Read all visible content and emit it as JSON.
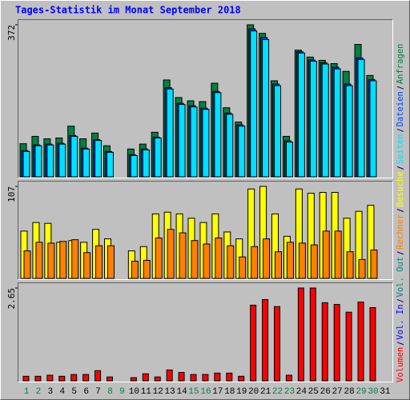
{
  "chart_data": [
    {
      "type": "bar",
      "title": "Tages-Statistik im Monat September 2018",
      "categories": [
        "1",
        "2",
        "3",
        "4",
        "5",
        "6",
        "7",
        "8",
        "9",
        "10",
        "11",
        "12",
        "13",
        "14",
        "15",
        "16",
        "17",
        "18",
        "19",
        "20",
        "21",
        "22",
        "23",
        "24",
        "25",
        "26",
        "27",
        "28",
        "29",
        "30",
        "31"
      ],
      "category_colors": [
        "#008040",
        "#008040",
        "#000000",
        "#000000",
        "#000000",
        "#000000",
        "#000000",
        "#008040",
        "#008040",
        "#000000",
        "#000000",
        "#000000",
        "#000000",
        "#000000",
        "#008040",
        "#008040",
        "#000000",
        "#000000",
        "#000000",
        "#000000",
        "#000000",
        "#008040",
        "#008040",
        "#000000",
        "#000000",
        "#000000",
        "#000000",
        "#000000",
        "#008040",
        "#008040",
        "#000000"
      ],
      "ylim": [
        0,
        372
      ],
      "yticks": [
        372
      ],
      "series": [
        {
          "name": "Anfragen",
          "color": "#008040",
          "values": [
            81,
            99,
            93,
            95,
            124,
            93,
            107,
            76,
            0,
            68,
            80,
            109,
            237,
            194,
            186,
            184,
            229,
            169,
            134,
            372,
            351,
            235,
            99,
            310,
            293,
            285,
            277,
            258,
            324,
            248,
            null
          ]
        },
        {
          "name": "Dateien",
          "color": "#0040ff",
          "values": [
            64,
            78,
            80,
            82,
            101,
            70,
            91,
            62,
            0,
            54,
            68,
            97,
            218,
            180,
            174,
            168,
            209,
            156,
            127,
            362,
            341,
            227,
            88,
            306,
            286,
            279,
            268,
            227,
            291,
            238,
            null
          ]
        },
        {
          "name": "Seiten",
          "color": "#00e0ff",
          "values": [
            62,
            76,
            78,
            80,
            99,
            68,
            89,
            60,
            0,
            52,
            66,
            95,
            215,
            177,
            171,
            165,
            206,
            153,
            124,
            357,
            336,
            223,
            85,
            303,
            283,
            276,
            264,
            223,
            287,
            235,
            null
          ]
        }
      ]
    },
    {
      "type": "bar",
      "ylim": [
        0,
        107
      ],
      "yticks": [
        107
      ],
      "series": [
        {
          "name": "Besuche",
          "color": "#ffff00",
          "values": [
            55,
            65,
            64,
            42,
            44,
            42,
            57,
            46,
            0,
            32,
            37,
            75,
            77,
            75,
            70,
            65,
            75,
            54,
            46,
            104,
            107,
            75,
            49,
            104,
            99,
            100,
            100,
            70,
            78,
            85,
            null
          ]
        },
        {
          "name": "Rechner",
          "color": "#ff8000",
          "values": [
            32,
            42,
            41,
            43,
            45,
            30,
            38,
            38,
            0,
            20,
            21,
            47,
            57,
            53,
            44,
            40,
            47,
            38,
            25,
            37,
            46,
            31,
            42,
            41,
            39,
            55,
            55,
            31,
            22,
            33,
            null
          ]
        }
      ]
    },
    {
      "type": "bar",
      "ylim": [
        0,
        2.65
      ],
      "yticks": [
        2.65
      ],
      "series": [
        {
          "name": "Volumen",
          "color": "#ff0000",
          "values": [
            0.13,
            0.13,
            0.16,
            0.13,
            0.18,
            0.18,
            0.29,
            0.11,
            0,
            0.09,
            0.2,
            0.11,
            0.31,
            0.24,
            0.18,
            0.18,
            0.22,
            0.22,
            0.13,
            2.16,
            2.32,
            2.12,
            0.16,
            2.65,
            2.65,
            2.23,
            2.18,
            1.96,
            2.25,
            2.09,
            null
          ]
        },
        {
          "name": "Vol. In",
          "color": "#0000ff",
          "values": [
            null,
            null,
            null,
            null,
            null,
            null,
            null,
            null,
            null,
            null,
            null,
            null,
            null,
            null,
            null,
            null,
            null,
            null,
            null,
            null,
            null,
            null,
            null,
            null,
            null,
            null,
            null,
            null,
            null,
            null,
            null
          ]
        },
        {
          "name": "Vol. Out",
          "color": "#008080",
          "values": [
            null,
            null,
            null,
            null,
            null,
            null,
            null,
            null,
            null,
            null,
            null,
            null,
            null,
            null,
            null,
            null,
            null,
            null,
            null,
            null,
            null,
            null,
            null,
            null,
            null,
            null,
            null,
            null,
            null,
            null,
            null
          ]
        }
      ]
    }
  ]
}
